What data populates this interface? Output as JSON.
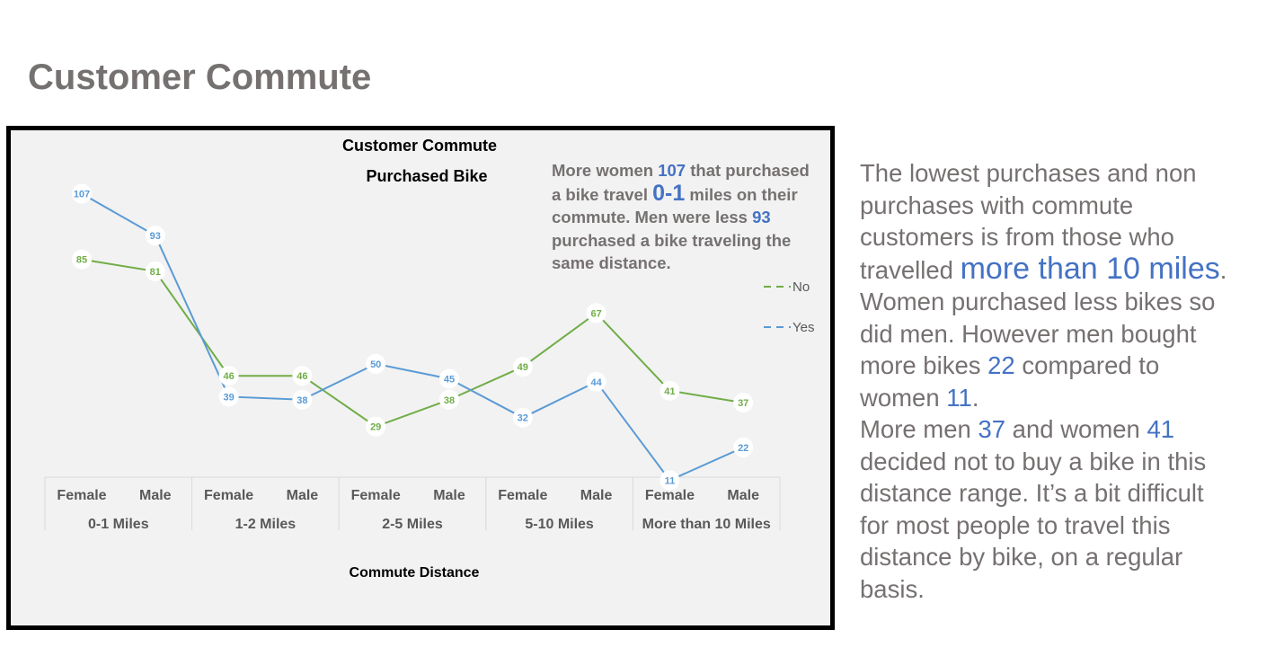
{
  "slide": {
    "title": "Customer Commute"
  },
  "callout": {
    "t1": "More women ",
    "v1": "107",
    "t2": " that purchased a bike travel ",
    "v2": "0-1",
    "t3": " miles on their commute. Men were less ",
    "v3": "93",
    "t4": " purchased a bike traveling the same distance."
  },
  "side_text": {
    "p1_t1": "The lowest purchases and non purchases with commute customers is from those who travelled ",
    "p1_h1": "more than 10 miles",
    "p1_t2": ".  Women purchased less bikes so did men. However men bought more bikes ",
    "p1_h2": "22",
    "p1_t3": " compared to women ",
    "p1_h3": "11",
    "p1_t4": ".",
    "p2_t1": "More men ",
    "p2_h1": "37",
    "p2_t2": " and women ",
    "p2_h2": "41",
    "p2_t3": " decided not to buy a bike in this distance range. It’s a bit difficult for most people to travel this distance by bike, on a regular basis."
  },
  "chart_data": {
    "type": "line",
    "title": "Customer Commute",
    "subtitle": "Purchased Bike",
    "xlabel": "Commute Distance",
    "ylabel": "",
    "groups": [
      "0-1 Miles",
      "1-2 Miles",
      "2-5 Miles",
      "5-10 Miles",
      "More than 10 Miles"
    ],
    "categories": [
      "Female",
      "Male",
      "Female",
      "Male",
      "Female",
      "Male",
      "Female",
      "Male",
      "Female",
      "Male"
    ],
    "series": [
      {
        "name": "No",
        "color": "#70ad47",
        "values": [
          85,
          81,
          46,
          46,
          29,
          38,
          49,
          67,
          41,
          37
        ]
      },
      {
        "name": "Yes",
        "color": "#5b9bd5",
        "values": [
          107,
          93,
          39,
          38,
          50,
          45,
          32,
          44,
          11,
          22
        ]
      }
    ],
    "ylim": [
      0,
      120
    ],
    "grid": false,
    "legend": "right"
  }
}
